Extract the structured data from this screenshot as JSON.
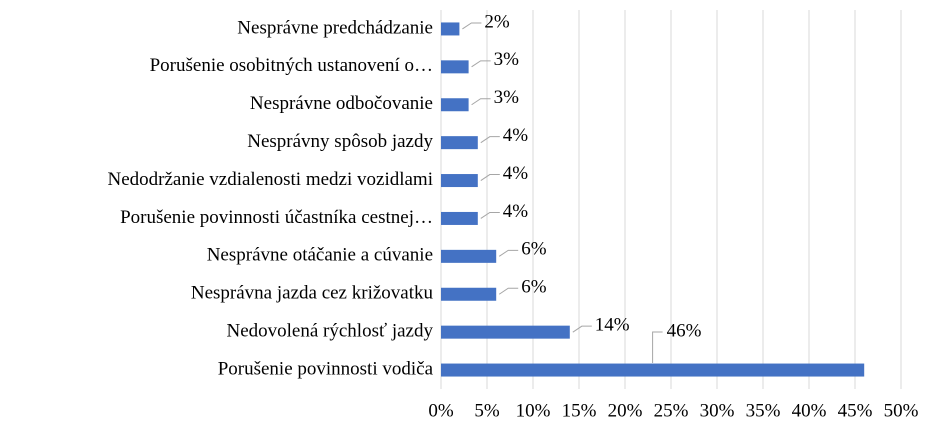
{
  "chart_data": {
    "type": "bar",
    "orientation": "horizontal",
    "categories": [
      "Nesprávne predchádzanie",
      "Porušenie osobitných ustanovení o…",
      "Nesprávne odbočovanie",
      "Nesprávny spôsob jazdy",
      "Nedodržanie vzdialenosti medzi vozidlami",
      "Porušenie povinnosti účastníka cestnej…",
      "Nesprávne otáčanie a cúvanie",
      "Nesprávna jazda cez križovatku",
      "Nedovolená rýchlosť jazdy",
      "Porušenie povinnosti vodiča"
    ],
    "values": [
      2,
      3,
      3,
      4,
      4,
      4,
      6,
      6,
      14,
      46
    ],
    "value_labels": [
      "2%",
      "3%",
      "3%",
      "4%",
      "4%",
      "4%",
      "6%",
      "6%",
      "14%",
      "46%"
    ],
    "color": "#4472c4",
    "xlim": [
      0,
      50
    ],
    "xticks": [
      {
        "value": 0,
        "label": "0%"
      },
      {
        "value": 5,
        "label": "5%"
      },
      {
        "value": 10,
        "label": "10%"
      },
      {
        "value": 15,
        "label": "15%"
      },
      {
        "value": 20,
        "label": "20%"
      },
      {
        "value": 25,
        "label": "25%"
      },
      {
        "value": 30,
        "label": "30%"
      },
      {
        "value": 35,
        "label": "35%"
      },
      {
        "value": 40,
        "label": "40%"
      },
      {
        "value": 45,
        "label": "45%"
      },
      {
        "value": 50,
        "label": "50%"
      }
    ],
    "grid": true
  }
}
